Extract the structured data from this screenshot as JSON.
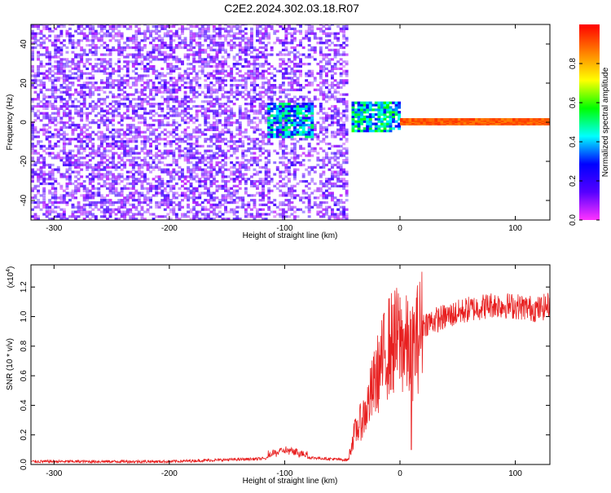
{
  "figure": {
    "title": "C2E2.2024.302.03.18.R07"
  },
  "colorbar": {
    "label": "Normalized spectral amplitude",
    "ticks": [
      "0.0",
      "0.2",
      "0.4",
      "0.6",
      "0.8"
    ],
    "tick_values": [
      0.0,
      0.2,
      0.4,
      0.6,
      0.8
    ],
    "range": [
      0,
      1
    ],
    "colormap": [
      "#ff33ff",
      "#5500ff",
      "#0000ff",
      "#00ffff",
      "#00ff00",
      "#ffff00",
      "#ff8000",
      "#ff0000"
    ]
  },
  "chart_data": [
    {
      "type": "heatmap",
      "title": "",
      "xlabel": "Height of straight line (km)",
      "ylabel": "Frequency (Hz)",
      "xlim": [
        -320,
        130
      ],
      "ylim": [
        -50,
        50
      ],
      "xticks": [
        "-300",
        "-200",
        "-100",
        "0",
        "100"
      ],
      "xtick_values": [
        -300,
        -200,
        -100,
        0,
        100
      ],
      "yticks": [
        "-40",
        "-20",
        "0",
        "20",
        "40"
      ],
      "ytick_values": [
        -40,
        -20,
        0,
        20,
        40
      ],
      "regions": [
        {
          "desc": "noise",
          "x": [
            -320,
            -45
          ],
          "y": [
            -50,
            50
          ],
          "amplitude": [
            0.05,
            0.2
          ]
        },
        {
          "desc": "signal-patch",
          "x": [
            -115,
            -75
          ],
          "y": [
            -8,
            10
          ],
          "amplitude": [
            0.2,
            0.55
          ]
        },
        {
          "desc": "signal-onset",
          "x": [
            -42,
            0
          ],
          "y": [
            -5,
            10
          ],
          "amplitude": [
            0.25,
            0.6
          ]
        },
        {
          "desc": "carrier",
          "x": [
            0,
            130
          ],
          "y": [
            -1.5,
            1.5
          ],
          "amplitude": [
            0.85,
            0.95
          ]
        }
      ]
    },
    {
      "type": "line",
      "title": "",
      "xlabel": "Height of straight line (km)",
      "ylabel": "SNR (10 * v/v)",
      "scale_label": "(x10",
      "scale_exp": "4",
      "scale_close": ")",
      "xlim": [
        -320,
        130
      ],
      "ylim": [
        0,
        1.35
      ],
      "xticks": [
        "-300",
        "-200",
        "-100",
        "0",
        "100"
      ],
      "xtick_values": [
        -300,
        -200,
        -100,
        0,
        100
      ],
      "yticks": [
        "0.0",
        "0.2",
        "0.4",
        "0.6",
        "0.8",
        "1.0",
        "1.2"
      ],
      "ytick_values": [
        0.0,
        0.2,
        0.4,
        0.6,
        0.8,
        1.0,
        1.2
      ],
      "color": "#e82020",
      "series": [
        {
          "x": [
            -320,
            -200,
            -115,
            -100,
            -85,
            -45,
            -40,
            -30,
            -20,
            -10,
            0,
            10,
            20,
            40,
            60,
            80,
            100,
            120,
            130
          ],
          "values": [
            0.02,
            0.02,
            0.04,
            0.07,
            0.05,
            0.03,
            0.2,
            0.35,
            0.6,
            0.8,
            0.85,
            0.75,
            0.95,
            1.0,
            1.05,
            1.08,
            1.07,
            1.05,
            1.08
          ]
        }
      ]
    }
  ]
}
